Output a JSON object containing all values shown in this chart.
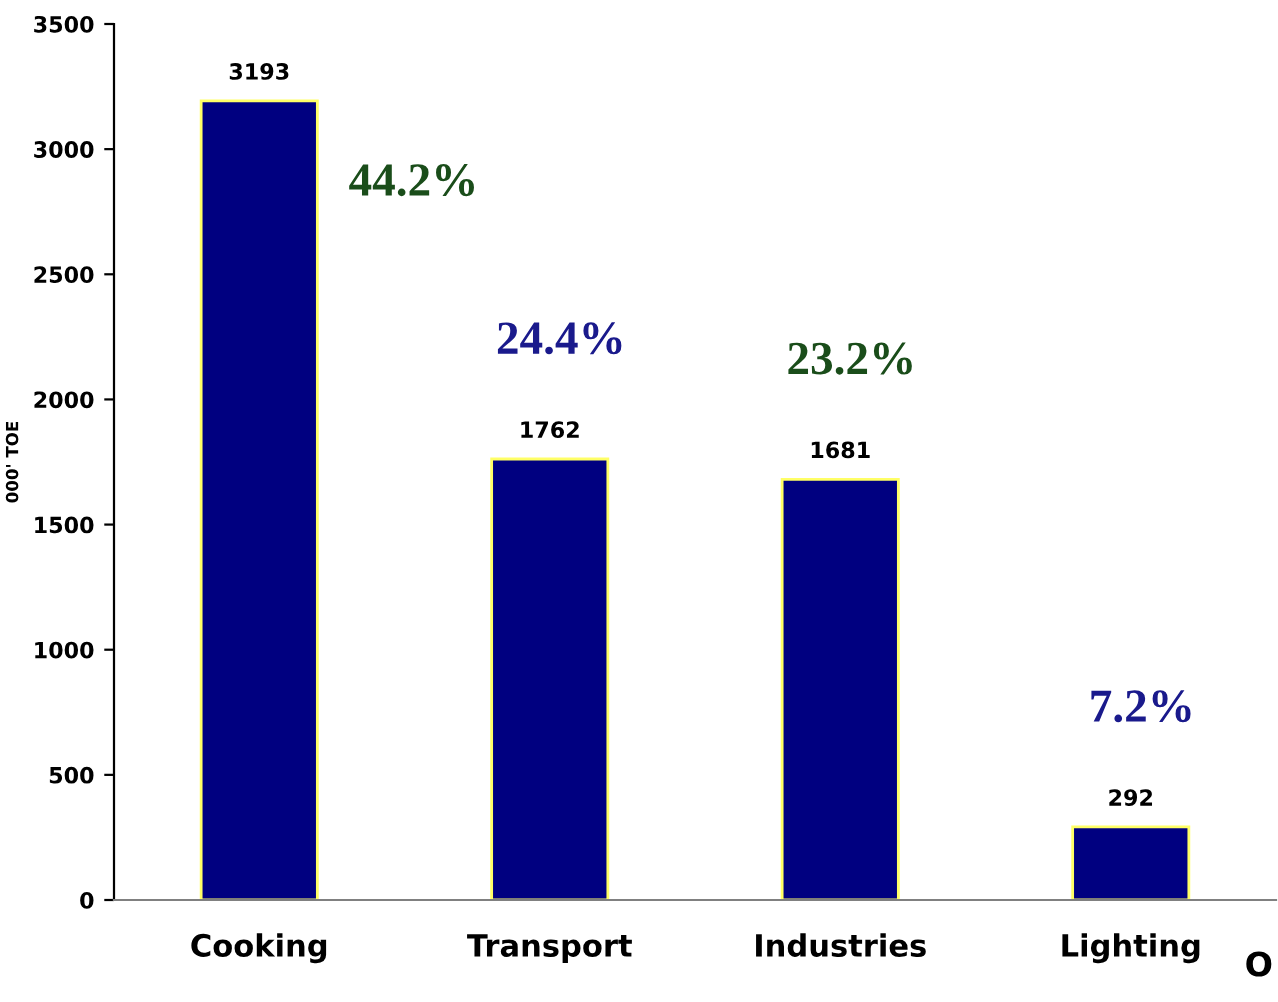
{
  "chart_data": {
    "type": "bar",
    "ylabel": "000' TOE",
    "categories": [
      "Cooking",
      "Transport",
      "Industries",
      "Lighting"
    ],
    "values": [
      3193,
      1762,
      1681,
      292
    ],
    "color": "#000080",
    "data_labels": true,
    "ylim": [
      0,
      3500
    ],
    "yticks": [
      0,
      500,
      1000,
      1500,
      2000,
      2500,
      3000,
      3500
    ],
    "grid": false,
    "legend": false,
    "annotations": [
      "44.2%",
      "24.4%",
      "23.2%",
      "7.2%",
      "O"
    ]
  }
}
